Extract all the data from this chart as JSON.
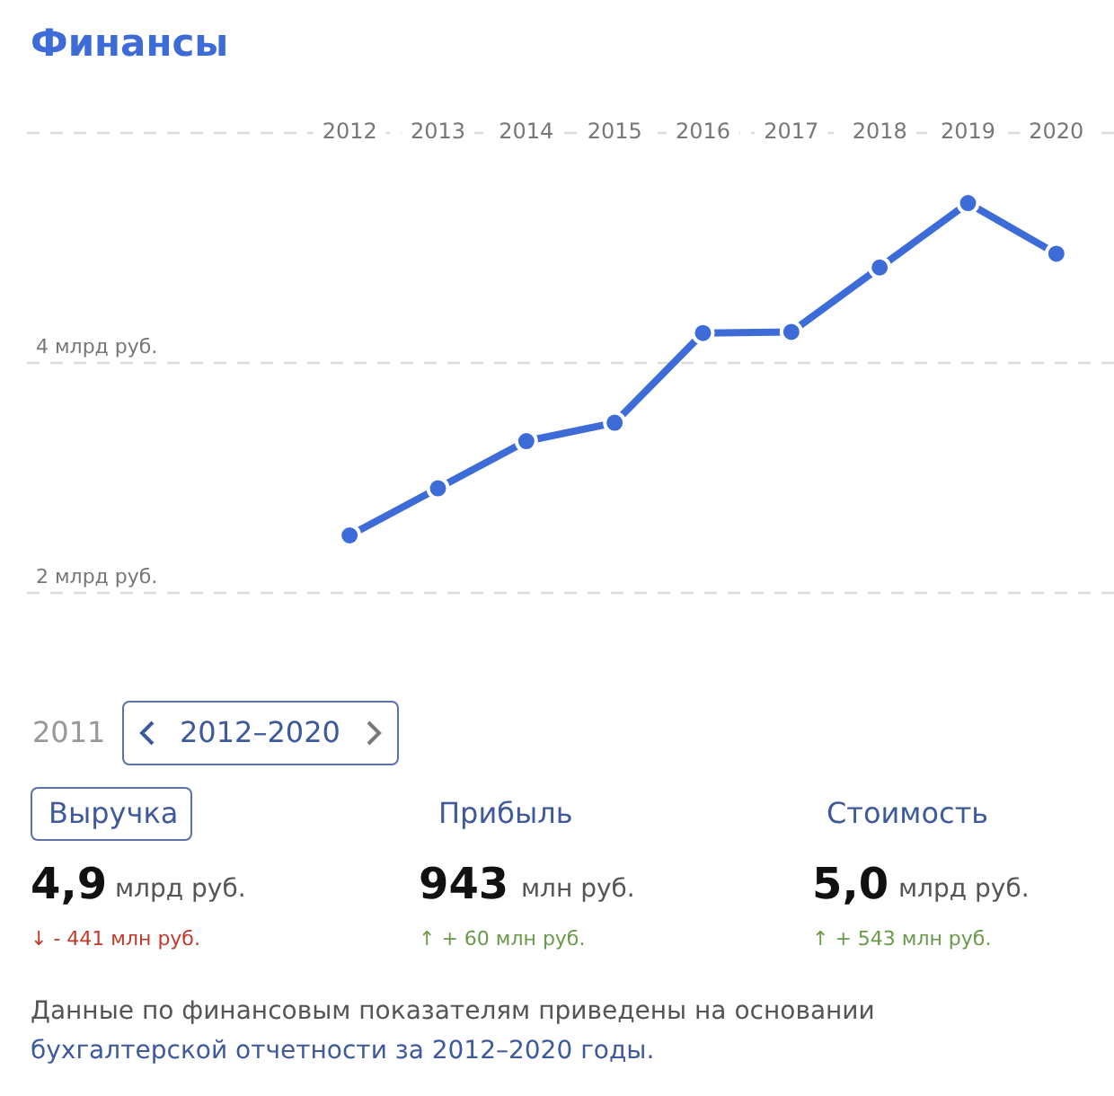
{
  "chart_data": {
    "type": "line",
    "title": "Финансы",
    "categories": [
      "2012",
      "2013",
      "2014",
      "2015",
      "2016",
      "2017",
      "2018",
      "2019",
      "2020"
    ],
    "series": [
      {
        "color": "#3d6cd8",
        "values": [
          2.5,
          2.91,
          3.32,
          3.48,
          4.26,
          4.27,
          4.83,
          5.39,
          4.95
        ]
      }
    ],
    "ylim": [
      2,
      6
    ],
    "yticks": [
      {
        "value": 2,
        "label": "2 млрд руб."
      },
      {
        "value": 4,
        "label": "4 млрд руб."
      },
      {
        "value": 6,
        "label": null
      }
    ],
    "grid": "y",
    "marker": "circle",
    "line_style": "solid",
    "legend": false,
    "annotations": [
      "2011",
      "2012–2020",
      "Выручка",
      "Прибыль",
      "Стоимость",
      "4,9",
      "млрд руб.",
      "943",
      "млн руб.",
      "5,0",
      "млрд руб.",
      "↓ - 441 млн руб.",
      "↑ + 60 млн руб.",
      "↑ + 543 млн руб.",
      "Данные по финансовым показателям приведены на основании",
      "бухгалтерской отчетности за 2012–2020 годы."
    ]
  }
}
